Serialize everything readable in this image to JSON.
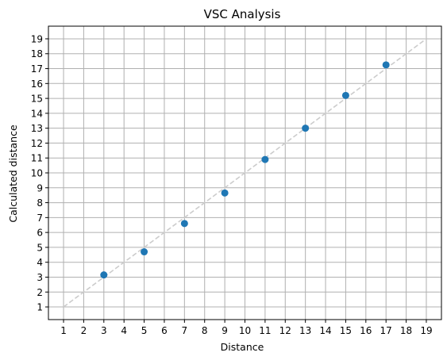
{
  "chart_data": {
    "type": "scatter",
    "title": "VSC Analysis",
    "xlabel": "Distance",
    "ylabel": "Calculated distance",
    "xlim": [
      0.25,
      19.75
    ],
    "ylim": [
      0.15,
      19.85
    ],
    "xticks": [
      1,
      2,
      3,
      4,
      5,
      6,
      7,
      8,
      9,
      10,
      11,
      12,
      13,
      14,
      15,
      16,
      17,
      18,
      19
    ],
    "yticks": [
      1,
      2,
      3,
      4,
      5,
      6,
      7,
      8,
      9,
      10,
      11,
      12,
      13,
      14,
      15,
      16,
      17,
      18,
      19
    ],
    "grid": true,
    "series": [
      {
        "x": [
          3,
          5,
          7,
          9,
          11,
          13,
          15,
          17
        ],
        "y": [
          3.15,
          4.7,
          6.6,
          8.65,
          10.9,
          13.0,
          15.2,
          17.25
        ],
        "color": "#1f77b4"
      }
    ],
    "reference_line": {
      "x": [
        1,
        19
      ],
      "y": [
        1,
        19
      ],
      "style": "dashed",
      "color": "#cccccc"
    }
  }
}
